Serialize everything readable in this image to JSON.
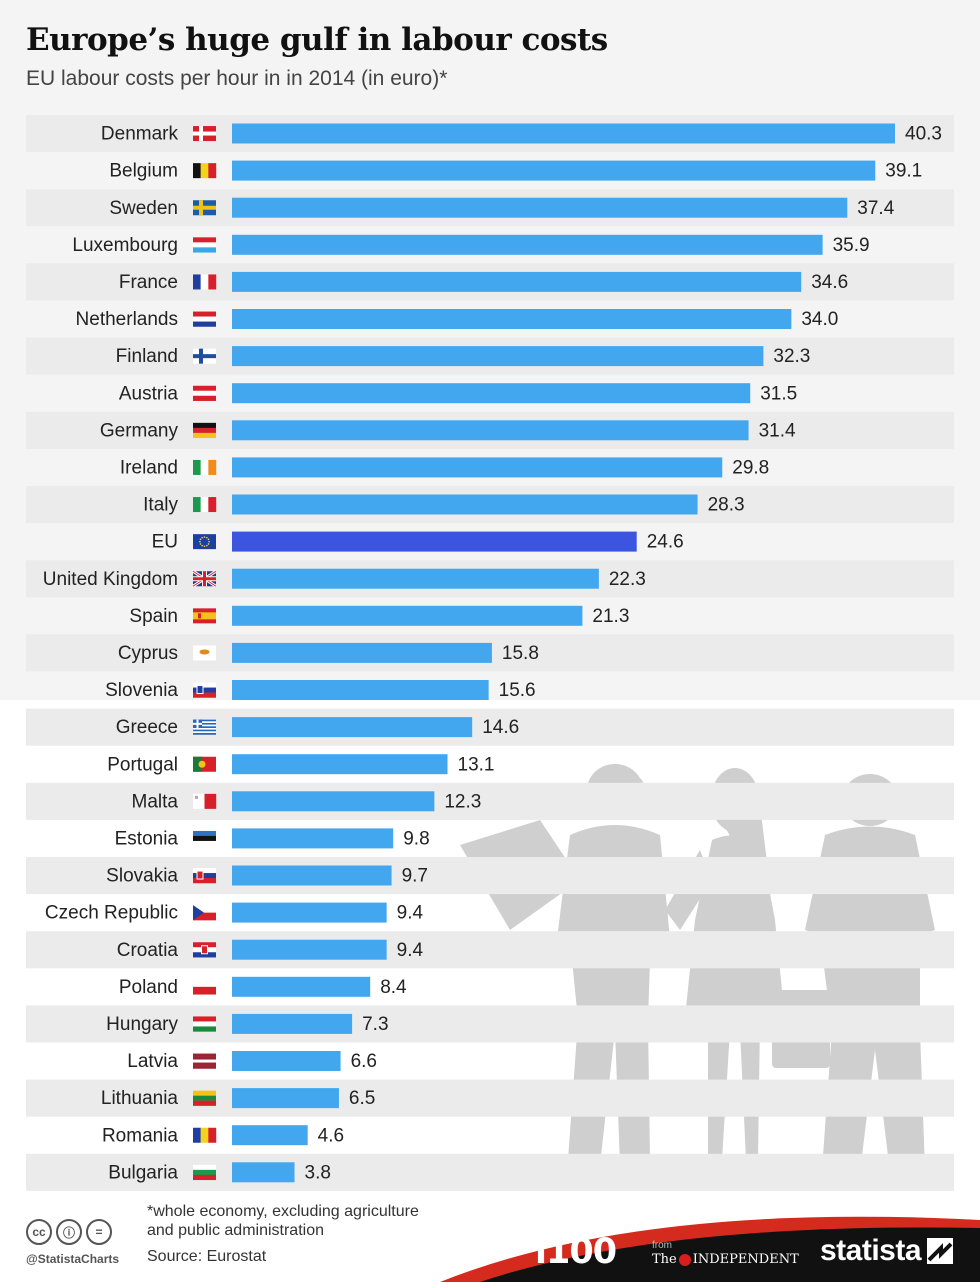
{
  "header": {
    "title": "Europe’s huge gulf in labour costs",
    "subtitle": "EU labour costs per hour in in 2014 (in euro)*"
  },
  "colors": {
    "bar": "#42a7ef",
    "bar_highlight": "#3c55e0",
    "stripe": "#ebebeb"
  },
  "chart_data": {
    "type": "bar",
    "orientation": "horizontal",
    "title": "Europe’s huge gulf in labour costs",
    "subtitle": "EU labour costs per hour in in 2014 (in euro)*",
    "unit": "euro",
    "highlight": "EU",
    "categories": [
      "Denmark",
      "Belgium",
      "Sweden",
      "Luxembourg",
      "France",
      "Netherlands",
      "Finland",
      "Austria",
      "Germany",
      "Ireland",
      "Italy",
      "EU",
      "United Kingdom",
      "Spain",
      "Cyprus",
      "Slovenia",
      "Greece",
      "Portugal",
      "Malta",
      "Estonia",
      "Slovakia",
      "Czech Republic",
      "Croatia",
      "Poland",
      "Hungary",
      "Latvia",
      "Lithuania",
      "Romania",
      "Bulgaria"
    ],
    "values": [
      40.3,
      39.1,
      37.4,
      35.9,
      34.6,
      34.0,
      32.3,
      31.5,
      31.4,
      29.8,
      28.3,
      24.6,
      22.3,
      21.3,
      15.8,
      15.6,
      14.6,
      13.1,
      12.3,
      9.8,
      9.7,
      9.4,
      9.4,
      8.4,
      7.3,
      6.6,
      6.5,
      4.6,
      3.8
    ],
    "value_labels": [
      "40.3",
      "39.1",
      "37.4",
      "35.9",
      "34.6",
      "34.0",
      "32.3",
      "31.5",
      "31.4",
      "29.8",
      "28.3",
      "24.6",
      "22.3",
      "21.3",
      "15.8",
      "15.6",
      "14.6",
      "13.1",
      "12.3",
      "9.8",
      "9.7",
      "9.4",
      "9.4",
      "8.4",
      "7.3",
      "6.6",
      "6.5",
      "4.6",
      "3.8"
    ],
    "flag_icons": [
      "flag-denmark-icon",
      "flag-belgium-icon",
      "flag-sweden-icon",
      "flag-luxembourg-icon",
      "flag-france-icon",
      "flag-netherlands-icon",
      "flag-finland-icon",
      "flag-austria-icon",
      "flag-germany-icon",
      "flag-ireland-icon",
      "flag-italy-icon",
      "flag-eu-icon",
      "flag-united-kingdom-icon",
      "flag-spain-icon",
      "flag-cyprus-icon",
      "flag-slovenia-icon",
      "flag-greece-icon",
      "flag-portugal-icon",
      "flag-malta-icon",
      "flag-estonia-icon",
      "flag-slovakia-icon",
      "flag-czech-republic-icon",
      "flag-croatia-icon",
      "flag-poland-icon",
      "flag-hungary-icon",
      "flag-latvia-icon",
      "flag-lithuania-icon",
      "flag-romania-icon",
      "flag-bulgaria-icon"
    ],
    "xlim": [
      0,
      40.3
    ],
    "grid": false,
    "legend": "none"
  },
  "footer": {
    "footnote": "*whole economy, excluding agriculture and public administration",
    "source": "Source: Eurostat",
    "handle": "@StatistaCharts",
    "license_icons": [
      "cc-icon",
      "by-icon",
      "nd-icon"
    ],
    "license_glyphs": [
      "cc",
      "ⓘ",
      "="
    ],
    "logo_i100": "i100",
    "logo_from": "from",
    "logo_the": "The",
    "logo_independent": "INDEPENDENT",
    "logo_statista": "statista"
  }
}
